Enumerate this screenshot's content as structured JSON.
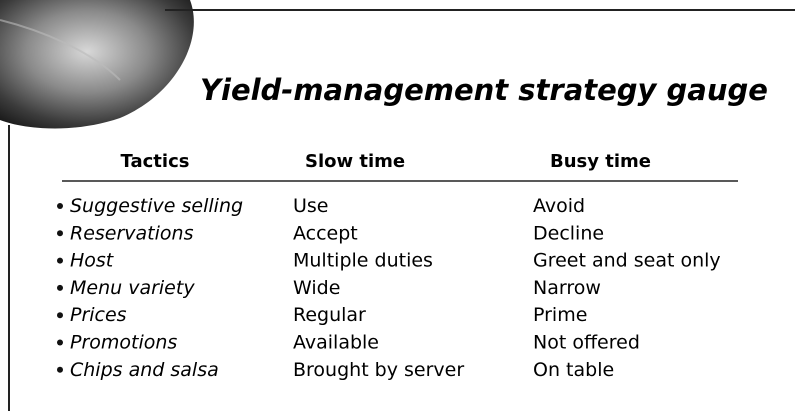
{
  "header": {
    "title": "Yield-management strategy gauge"
  },
  "table": {
    "columns": [
      "Tactics",
      "Slow time",
      "Busy time"
    ],
    "rows": [
      [
        "Suggestive selling",
        "Use",
        "Avoid"
      ],
      [
        "Reservations",
        "Accept",
        "Decline"
      ],
      [
        "Host",
        "Multiple duties",
        "Greet and seat only"
      ],
      [
        "Menu variety",
        "Wide",
        "Narrow"
      ],
      [
        "Prices",
        "Regular",
        "Prime"
      ],
      [
        "Promotions",
        "Available",
        "Not offered"
      ],
      [
        "Chips and salsa",
        "Brought by server",
        "On table"
      ]
    ]
  }
}
